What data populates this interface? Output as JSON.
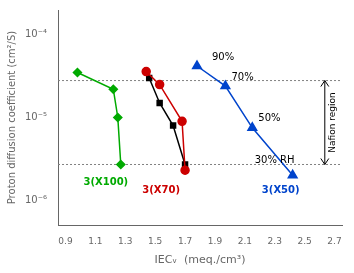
{
  "chart_data": {
    "type": "line",
    "xlabel": "IECᵥ  (meq./cm³)",
    "ylabel": "Proton diffusion coefficient (cm²/S)",
    "log": "y",
    "grid": false,
    "xlim": [
      0.85,
      2.75
    ],
    "ylim": [
      5e-07,
      0.0002
    ],
    "xticks": [
      0.9,
      1.1,
      1.3,
      1.5,
      1.7,
      1.9,
      2.1,
      2.3,
      2.5,
      2.7
    ],
    "yticks": [
      {
        "value": 1e-06,
        "label": "10⁻⁶"
      },
      {
        "value": 1e-05,
        "label": "10⁻⁵"
      },
      {
        "value": 0.0001,
        "label": "10⁻⁴"
      }
    ],
    "series": [
      {
        "color": "#00aa00",
        "marker": "diamond",
        "line_style": "solid",
        "x": [
          0.98,
          1.22,
          1.25,
          1.27
        ],
        "values": [
          3.5e-05,
          2.2e-05,
          1e-05,
          2.7e-06
        ]
      },
      {
        "color": "#cc0000",
        "marker": "circle",
        "line_style": "solid",
        "x": [
          1.44,
          1.53,
          1.68,
          1.7
        ],
        "values": [
          3.6e-05,
          2.5e-05,
          9e-06,
          2.3e-06
        ]
      },
      {
        "color": "#000000",
        "marker": "square",
        "line_style": "solid",
        "x": [
          1.46,
          1.53,
          1.62,
          1.7
        ],
        "values": [
          3e-05,
          1.5e-05,
          8e-06,
          2.7e-06
        ]
      },
      {
        "color": "#0044cc",
        "marker": "triangle",
        "line_style": "solid",
        "x": [
          1.78,
          1.97,
          2.15,
          2.42
        ],
        "values": [
          4.2e-05,
          2.4e-05,
          7.5e-06,
          2e-06
        ]
      }
    ],
    "hlines": [
      2.8e-05,
      2.7e-06
    ],
    "annotations": [
      {
        "text": "90%",
        "x": 1.84,
        "y": 4.2e-05,
        "color": "#000000"
      },
      {
        "text": "70%",
        "x": 1.97,
        "y": 2.4e-05,
        "color": "#000000"
      },
      {
        "text": "50%",
        "x": 2.15,
        "y": 7.5e-06,
        "color": "#000000"
      },
      {
        "text": "30% RH",
        "x": 2.42,
        "y": 2e-06,
        "color": "#000000"
      },
      {
        "text": "3(X100)",
        "x": 1.17,
        "y": 1.9e-06,
        "color": "#00aa00"
      },
      {
        "text": "3(X70)",
        "x": 1.54,
        "y": 1.5e-06,
        "color": "#cc0000"
      },
      {
        "text": "3(X50)",
        "x": 2.34,
        "y": 1.5e-06,
        "color": "#0044cc"
      },
      {
        "text": "Nafion region",
        "x": 2.66,
        "color": "#000000",
        "arrow": {
          "x": 2.635,
          "y": [
            2.8e-05,
            2.7e-06
          ]
        }
      }
    ]
  }
}
